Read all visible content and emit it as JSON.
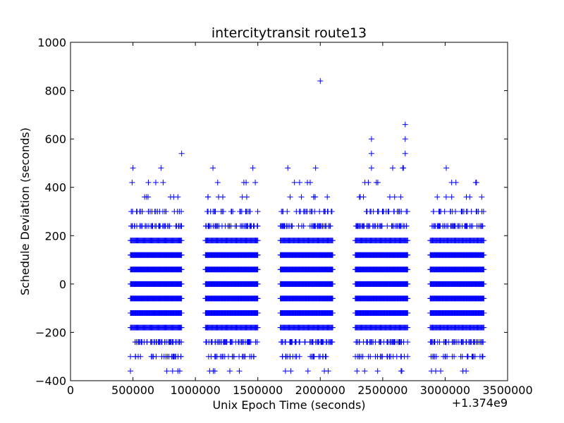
{
  "chart_data": {
    "type": "scatter",
    "title": "intercitytransit route13",
    "xlabel": "Unix Epoch Time (seconds)",
    "ylabel": "Schedule Deviation (seconds)",
    "x_offset_label": "+1.374e9",
    "xlim": [
      0,
      3500000
    ],
    "ylim": [
      -400,
      1000
    ],
    "xticks": [
      0,
      500000,
      1000000,
      1500000,
      2000000,
      2500000,
      3000000,
      3500000
    ],
    "xtick_labels": [
      "0",
      "500000",
      "1000000",
      "1500000",
      "2000000",
      "2500000",
      "3000000",
      "3500000"
    ],
    "yticks": [
      -400,
      -200,
      0,
      200,
      400,
      600,
      800,
      1000
    ],
    "ytick_labels": [
      "−400",
      "−200",
      "0",
      "200",
      "400",
      "600",
      "800",
      "1000"
    ],
    "grid": false,
    "marker": "+",
    "color": "#0000ff",
    "deviation_levels": [
      -360,
      -300,
      -240,
      -180,
      -120,
      -60,
      0,
      60,
      120,
      180,
      240,
      300,
      360,
      420,
      480
    ],
    "day_clusters": [
      {
        "x_start": 480000,
        "x_end": 890000
      },
      {
        "x_start": 1080000,
        "x_end": 1500000
      },
      {
        "x_start": 1680000,
        "x_end": 2100000
      },
      {
        "x_start": 2280000,
        "x_end": 2700000
      },
      {
        "x_start": 2880000,
        "x_end": 3310000
      }
    ],
    "outliers": [
      {
        "x": 500000,
        "y": 480
      },
      {
        "x": 890000,
        "y": 540
      },
      {
        "x": 1460000,
        "y": 480
      },
      {
        "x": 1740000,
        "y": 480
      },
      {
        "x": 2000000,
        "y": 840
      },
      {
        "x": 2410000,
        "y": 600
      },
      {
        "x": 2410000,
        "y": 540
      },
      {
        "x": 2410000,
        "y": 480
      },
      {
        "x": 2580000,
        "y": 480
      },
      {
        "x": 2660000,
        "y": 480
      },
      {
        "x": 2680000,
        "y": 660
      },
      {
        "x": 2680000,
        "y": 600
      },
      {
        "x": 2680000,
        "y": 540
      }
    ]
  }
}
